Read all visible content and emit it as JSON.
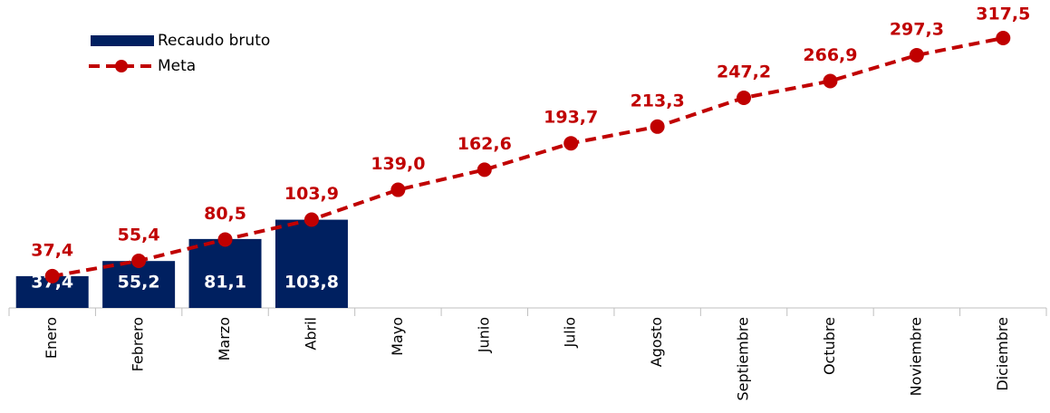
{
  "chart_data": {
    "type": "bar",
    "categories": [
      "Enero",
      "Febrero",
      "Marzo",
      "Abril",
      "Mayo",
      "Junio",
      "Julio",
      "Agosto",
      "Septiembre",
      "Octubre",
      "Noviembre",
      "Diciembre"
    ],
    "series": [
      {
        "name": "Recaudo bruto",
        "type": "bar",
        "color": "#002060",
        "values": [
          37.4,
          55.2,
          81.1,
          103.8,
          null,
          null,
          null,
          null,
          null,
          null,
          null,
          null
        ],
        "value_labels": [
          "37,4",
          "55,2",
          "81,1",
          "103,8",
          null,
          null,
          null,
          null,
          null,
          null,
          null,
          null
        ]
      },
      {
        "name": "Meta",
        "type": "line",
        "color": "#c00000",
        "values": [
          37.4,
          55.4,
          80.5,
          103.9,
          139.0,
          162.6,
          193.7,
          213.3,
          247.2,
          266.9,
          297.3,
          317.5
        ],
        "value_labels": [
          "37,4",
          "55,4",
          "80,5",
          "103,9",
          "139,0",
          "162,6",
          "193,7",
          "213,3",
          "247,2",
          "266,9",
          "297,3",
          "317,5"
        ]
      }
    ],
    "legend": "upper-left"
  }
}
